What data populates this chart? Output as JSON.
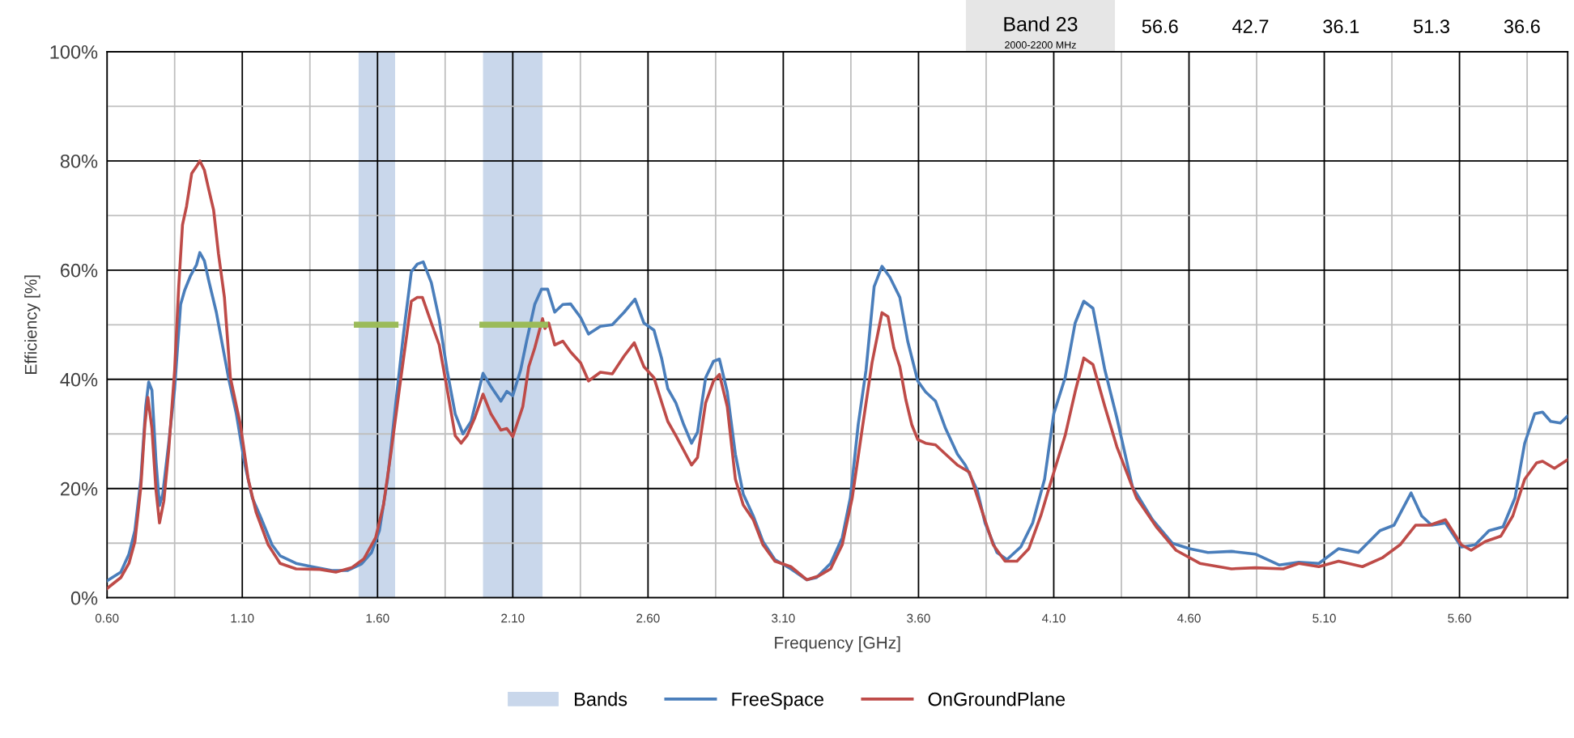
{
  "chart_data": {
    "type": "line",
    "xlabel": "Frequency [GHz]",
    "ylabel": "Efficiency [%]",
    "xlim": [
      0.6,
      6.0
    ],
    "ylim": [
      0,
      100
    ],
    "xticks": [
      {
        "value": 0.6,
        "label": "0.60"
      },
      {
        "value": 0.85,
        "label": null
      },
      {
        "value": 1.1,
        "label": "1.10"
      },
      {
        "value": 1.35,
        "label": null
      },
      {
        "value": 1.6,
        "label": "1.60"
      },
      {
        "value": 1.85,
        "label": null
      },
      {
        "value": 2.1,
        "label": "2.10"
      },
      {
        "value": 2.35,
        "label": null
      },
      {
        "value": 2.6,
        "label": "2.60"
      },
      {
        "value": 2.85,
        "label": null
      },
      {
        "value": 3.1,
        "label": "3.10"
      },
      {
        "value": 3.35,
        "label": null
      },
      {
        "value": 3.6,
        "label": "3.60"
      },
      {
        "value": 3.85,
        "label": null
      },
      {
        "value": 4.1,
        "label": "4.10"
      },
      {
        "value": 4.35,
        "label": null
      },
      {
        "value": 4.6,
        "label": "4.60"
      },
      {
        "value": 4.85,
        "label": null
      },
      {
        "value": 5.1,
        "label": "5.10"
      },
      {
        "value": 5.35,
        "label": null
      },
      {
        "value": 5.6,
        "label": "5.60"
      },
      {
        "value": 5.85,
        "label": null
      }
    ],
    "yticks": [
      {
        "value": 0,
        "label": "0%"
      },
      {
        "value": 10,
        "label": null
      },
      {
        "value": 20,
        "label": "20%"
      },
      {
        "value": 30,
        "label": null
      },
      {
        "value": 40,
        "label": "40%"
      },
      {
        "value": 50,
        "label": null
      },
      {
        "value": 60,
        "label": "60%"
      },
      {
        "value": 70,
        "label": null
      },
      {
        "value": 80,
        "label": "80%"
      },
      {
        "value": 90,
        "label": null
      },
      {
        "value": 100,
        "label": "100%"
      }
    ],
    "grid": true,
    "legend": "bottom",
    "marker": "none",
    "line_style": "solid",
    "bands": [
      {
        "axis": "x",
        "from": 1.53,
        "to": 1.665,
        "label": "Bands",
        "color": "#c9d7eb"
      },
      {
        "axis": "x",
        "from": 1.99,
        "to": 2.21,
        "color": "#c9d7eb"
      }
    ],
    "annotations": [
      "Band 23",
      "2000-2200 MHz",
      "56.6",
      "42.7",
      "36.1",
      "51.3",
      "36.6"
    ],
    "series": [
      {
        "name": "FreeSpace",
        "color": "#4a7ebb",
        "x": [
          0.6,
          0.651,
          0.681,
          0.703,
          0.725,
          0.743,
          0.754,
          0.766,
          0.781,
          0.794,
          0.806,
          0.828,
          0.85,
          0.872,
          0.887,
          0.909,
          0.931,
          0.943,
          0.96,
          0.975,
          1.004,
          1.019,
          1.049,
          1.078,
          1.107,
          1.137,
          1.166,
          1.21,
          1.24,
          1.299,
          1.357,
          1.431,
          1.49,
          1.541,
          1.578,
          1.607,
          1.637,
          1.666,
          1.696,
          1.725,
          1.747,
          1.769,
          1.799,
          1.828,
          1.857,
          1.887,
          1.916,
          1.946,
          1.968,
          1.99,
          2.019,
          2.056,
          2.078,
          2.1,
          2.129,
          2.151,
          2.181,
          2.206,
          2.229,
          2.255,
          2.285,
          2.314,
          2.351,
          2.38,
          2.424,
          2.468,
          2.512,
          2.552,
          2.585,
          2.622,
          2.651,
          2.673,
          2.703,
          2.732,
          2.761,
          2.783,
          2.813,
          2.842,
          2.864,
          2.893,
          2.923,
          2.952,
          2.989,
          3.025,
          3.069,
          3.128,
          3.187,
          3.223,
          3.275,
          3.318,
          3.348,
          3.377,
          3.406,
          3.436,
          3.465,
          3.494,
          3.531,
          3.56,
          3.597,
          3.626,
          3.663,
          3.7,
          3.744,
          3.773,
          3.817,
          3.846,
          3.89,
          3.927,
          3.978,
          4.022,
          4.066,
          4.1,
          4.142,
          4.179,
          4.211,
          4.245,
          4.289,
          4.333,
          4.391,
          4.465,
          4.538,
          4.601,
          4.67,
          4.757,
          4.845,
          4.933,
          5.006,
          5.08,
          5.153,
          5.226,
          5.306,
          5.358,
          5.421,
          5.46,
          5.497,
          5.548,
          5.607,
          5.658,
          5.709,
          5.761,
          5.805,
          5.841,
          5.878,
          5.907,
          5.937,
          5.973,
          6.0
        ],
        "values": [
          3.1,
          4.7,
          8.0,
          12.3,
          21.7,
          35,
          39.5,
          38,
          25,
          16.9,
          19,
          28.3,
          38.3,
          53.7,
          56.3,
          59,
          61,
          63.2,
          61.7,
          58.3,
          52.3,
          48.3,
          40.3,
          33.7,
          25,
          18.3,
          15,
          9.7,
          7.7,
          6.3,
          5.7,
          5,
          5,
          6.2,
          8.3,
          12.3,
          21.7,
          35,
          48.3,
          59.7,
          61.1,
          61.5,
          57.7,
          51,
          41.7,
          33.7,
          30,
          32.3,
          36.7,
          41.1,
          38.7,
          36,
          37.8,
          37,
          41.7,
          47,
          53.7,
          56.5,
          56.5,
          52.3,
          53.7,
          53.8,
          51.3,
          48.3,
          49.7,
          50,
          52.3,
          54.7,
          50.3,
          49,
          43.7,
          38.3,
          35.7,
          31.7,
          28.3,
          30.3,
          40.3,
          43.3,
          43.7,
          37.7,
          26.3,
          19,
          15,
          10.3,
          7,
          5.3,
          3.3,
          3.7,
          6.3,
          11,
          18.3,
          31.7,
          41.7,
          57,
          60.7,
          58.7,
          55,
          47,
          39.7,
          37.7,
          36,
          31,
          26.3,
          24.3,
          19.7,
          13.7,
          8.3,
          7,
          9.3,
          13.7,
          21.7,
          33.7,
          40.3,
          50.3,
          54.3,
          53,
          41.7,
          33,
          20.3,
          14.3,
          10,
          9,
          8.3,
          8.5,
          8,
          6,
          6.5,
          6.3,
          9,
          8.3,
          12.3,
          13.3,
          19.2,
          15,
          13.3,
          13.7,
          9.3,
          9.7,
          12.3,
          13,
          18.3,
          28.3,
          33.7,
          34,
          32.3,
          32,
          33.3
        ]
      },
      {
        "name": "OnGroundPlane",
        "color": "#be4b48",
        "x": [
          0.6,
          0.651,
          0.681,
          0.703,
          0.725,
          0.74,
          0.751,
          0.766,
          0.781,
          0.794,
          0.81,
          0.828,
          0.85,
          0.865,
          0.879,
          0.894,
          0.913,
          0.931,
          0.943,
          0.96,
          0.975,
          0.994,
          1.012,
          1.034,
          1.056,
          1.093,
          1.122,
          1.151,
          1.196,
          1.24,
          1.299,
          1.387,
          1.446,
          1.504,
          1.549,
          1.593,
          1.622,
          1.651,
          1.681,
          1.703,
          1.725,
          1.747,
          1.766,
          1.799,
          1.828,
          1.857,
          1.887,
          1.909,
          1.931,
          1.96,
          1.99,
          2.019,
          2.056,
          2.078,
          2.1,
          2.137,
          2.159,
          2.181,
          2.21,
          2.219,
          2.233,
          2.255,
          2.285,
          2.314,
          2.351,
          2.38,
          2.424,
          2.468,
          2.512,
          2.549,
          2.585,
          2.622,
          2.651,
          2.673,
          2.703,
          2.732,
          2.761,
          2.783,
          2.813,
          2.842,
          2.864,
          2.893,
          2.923,
          2.952,
          2.989,
          3.025,
          3.069,
          3.128,
          3.187,
          3.231,
          3.275,
          3.318,
          3.355,
          3.392,
          3.428,
          3.465,
          3.487,
          3.509,
          3.531,
          3.553,
          3.575,
          3.597,
          3.626,
          3.663,
          3.7,
          3.744,
          3.788,
          3.832,
          3.876,
          3.92,
          3.964,
          4.008,
          4.052,
          4.088,
          4.142,
          4.179,
          4.211,
          4.245,
          4.289,
          4.333,
          4.406,
          4.479,
          4.552,
          4.64,
          4.757,
          4.845,
          4.948,
          5.006,
          5.08,
          5.153,
          5.241,
          5.314,
          5.38,
          5.438,
          5.49,
          5.548,
          5.607,
          5.643,
          5.695,
          5.753,
          5.797,
          5.841,
          5.885,
          5.907,
          5.951,
          6.0
        ],
        "values": [
          1.7,
          3.7,
          6.3,
          10.3,
          20.3,
          31.7,
          36.7,
          31,
          19.7,
          13.7,
          17.7,
          27,
          41.7,
          57,
          68.3,
          71.7,
          77.7,
          79,
          80,
          78.3,
          75,
          71,
          63,
          55,
          40.3,
          31.7,
          21.7,
          15.7,
          9.7,
          6.3,
          5.3,
          5.2,
          4.7,
          5.5,
          7.1,
          11,
          17,
          27,
          38.3,
          46.3,
          54.3,
          55,
          55,
          50.3,
          46.3,
          38.3,
          29.7,
          28.3,
          29.7,
          33,
          37.3,
          33.7,
          30.7,
          31,
          29.5,
          35,
          42.3,
          45.7,
          51.1,
          49.3,
          50.3,
          46.3,
          47,
          45,
          43,
          39.7,
          41.3,
          41,
          44.3,
          46.7,
          42.3,
          40.3,
          35.7,
          32.3,
          29.7,
          27,
          24.3,
          25.7,
          35.7,
          39.7,
          40.9,
          35,
          21.7,
          17,
          14.3,
          9.7,
          6.7,
          5.7,
          3.3,
          4,
          5.3,
          9.7,
          18.3,
          31,
          43,
          52.2,
          51.5,
          45.7,
          42.3,
          36.3,
          31.7,
          29,
          28.3,
          28,
          26.3,
          24.3,
          23,
          16.3,
          9.7,
          6.7,
          6.7,
          9,
          15,
          21,
          29.7,
          37.7,
          43.9,
          42.7,
          35,
          27.7,
          18.3,
          13,
          8.7,
          6.3,
          5.3,
          5.5,
          5.3,
          6.3,
          5.7,
          6.7,
          5.7,
          7.3,
          9.7,
          13.3,
          13.3,
          14.3,
          9.7,
          8.7,
          10.3,
          11.3,
          15,
          21.7,
          24.7,
          25,
          23.7,
          25.3
        ]
      },
      {
        "color": "#9bbb59",
        "x": [
          1.524,
          1.666
        ],
        "values": [
          50,
          50
        ]
      },
      {
        "color": "#9bbb59",
        "x": [
          1.988,
          2.219
        ],
        "values": [
          50,
          50
        ]
      }
    ]
  }
}
